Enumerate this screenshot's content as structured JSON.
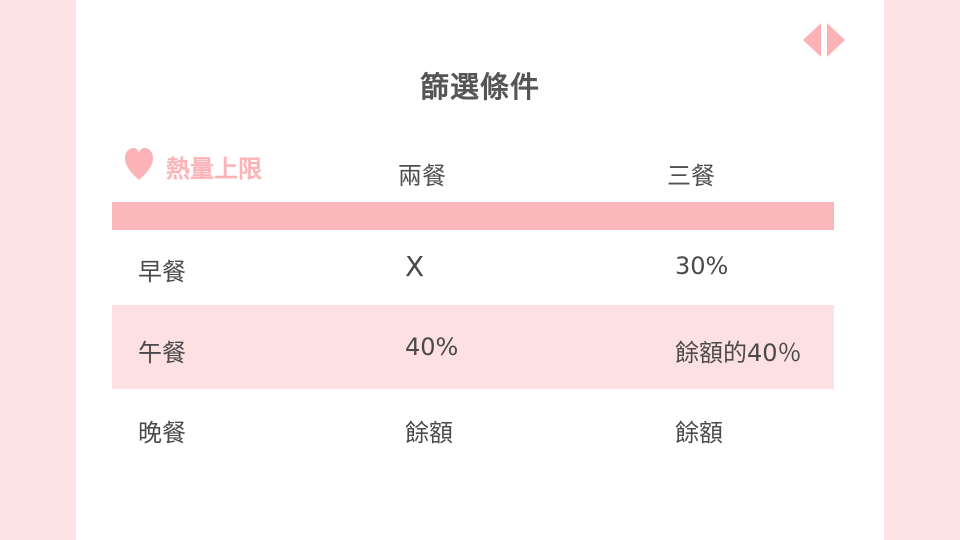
{
  "title": "篩選條件",
  "header": {
    "label": "熱量上限",
    "columns": [
      "兩餐",
      "三餐"
    ]
  },
  "rows": [
    {
      "meal": "早餐",
      "two_meals": "X",
      "three_meals": "30%"
    },
    {
      "meal": "午餐",
      "two_meals": "40%",
      "three_meals": "餘額的40％"
    },
    {
      "meal": "晚餐",
      "two_meals": "餘額",
      "three_meals": "餘額"
    }
  ],
  "colors": {
    "background": "#fde3e5",
    "accent": "#fbb7ba",
    "row_shade": "#fde0e2",
    "text": "#4a4a4a"
  },
  "icons": [
    "heart-icon",
    "prev-arrow-icon",
    "next-arrow-icon"
  ]
}
